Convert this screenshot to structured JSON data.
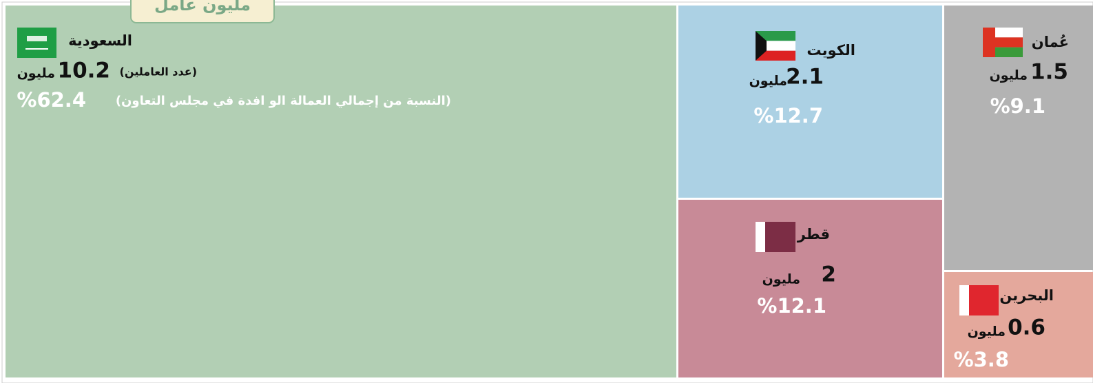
{
  "chart_data": {
    "type": "treemap",
    "title": "مليون عامل",
    "countries": [
      "السعودية",
      "الكويت",
      "قطر",
      "عُمان",
      "البحرين"
    ],
    "values": [
      10.2,
      2.1,
      2.0,
      1.5,
      0.6
    ],
    "percents": [
      62.4,
      12.7,
      12.1,
      9.1,
      3.8
    ],
    "percent_labels": [
      "%62.4",
      "%12.7",
      "%12.1",
      "%9.1",
      "%3.8"
    ],
    "unit": "مليون",
    "value_note": "(عدد العاملين)",
    "percent_note": "(النسبة من إجمالي العمالة الو افدة في مجلس التعاون)",
    "colors": [
      "#b2cfb4",
      "#acd1e4",
      "#c88a97",
      "#b3b3b3",
      "#e4a89c"
    ]
  }
}
